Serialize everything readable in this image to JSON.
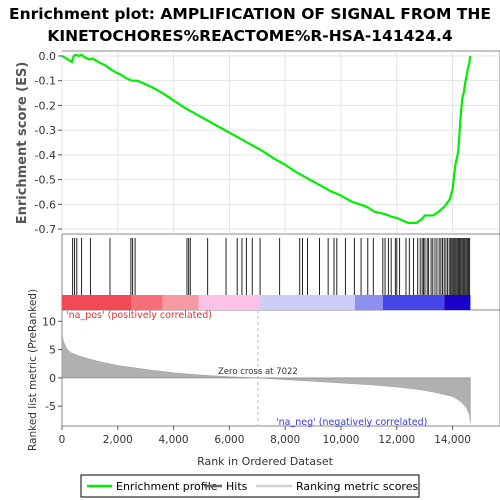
{
  "chart_data": {
    "type": "line",
    "title_lines": [
      "Enrichment plot: AMPLIFICATION OF SIGNAL FROM THE",
      "KINETOCHORES%REACTOME%R-HSA-141424.4"
    ],
    "top_panel": {
      "ylabel": "Enrichment score (ES)",
      "ylim": [
        -0.72,
        0.02
      ],
      "yticks": [
        0.0,
        -0.1,
        -0.2,
        -0.3,
        -0.4,
        -0.5,
        -0.6,
        -0.7
      ],
      "ytick_labels": [
        "0.0",
        "-0.1",
        "-0.2",
        "-0.3",
        "-0.4",
        "-0.5",
        "-0.6",
        "-0.7"
      ],
      "series_name": "Enrichment profile",
      "color": "#00ee00",
      "x": [
        0,
        150,
        300,
        360,
        420,
        500,
        600,
        700,
        800,
        900,
        1000,
        1100,
        1300,
        1500,
        1700,
        1900,
        2100,
        2300,
        2500,
        2700,
        2900,
        3200,
        3600,
        4000,
        4400,
        4800,
        5200,
        5600,
        6000,
        6400,
        6800,
        7200,
        7600,
        8000,
        8400,
        8800,
        9200,
        9600,
        10000,
        10400,
        10800,
        11000,
        11200,
        11600,
        11800,
        12000,
        12200,
        12400,
        12700,
        12900,
        13000,
        13300,
        13500,
        13700,
        13900,
        14000,
        14100,
        14200,
        14300,
        14350,
        14400,
        14450,
        14500,
        14550,
        14600,
        14620,
        14640
      ],
      "y": [
        0.0,
        -0.01,
        -0.02,
        -0.025,
        0.0,
        0.005,
        0.0,
        0.005,
        -0.005,
        -0.01,
        -0.015,
        -0.01,
        -0.025,
        -0.035,
        -0.05,
        -0.065,
        -0.075,
        -0.09,
        -0.1,
        -0.1,
        -0.11,
        -0.125,
        -0.15,
        -0.18,
        -0.21,
        -0.235,
        -0.26,
        -0.285,
        -0.31,
        -0.335,
        -0.36,
        -0.385,
        -0.415,
        -0.44,
        -0.47,
        -0.495,
        -0.52,
        -0.545,
        -0.565,
        -0.59,
        -0.605,
        -0.615,
        -0.63,
        -0.64,
        -0.65,
        -0.655,
        -0.665,
        -0.675,
        -0.675,
        -0.66,
        -0.645,
        -0.645,
        -0.63,
        -0.61,
        -0.58,
        -0.54,
        -0.44,
        -0.39,
        -0.23,
        -0.17,
        -0.15,
        -0.11,
        -0.08,
        -0.05,
        -0.03,
        -0.01,
        0.0
      ]
    },
    "hits_x": [
      380,
      450,
      530,
      700,
      1020,
      1720,
      2470,
      2530,
      2620,
      4480,
      4540,
      4600,
      5220,
      5880,
      6280,
      6450,
      6610,
      6820,
      7100,
      7800,
      8520,
      8620,
      8800,
      9230,
      9540,
      9750,
      9850,
      10160,
      10480,
      10720,
      10960,
      11160,
      11500,
      11580,
      11700,
      11800,
      11950,
      12000,
      12100,
      12330,
      12450,
      12600,
      12750,
      12840,
      12910,
      12960,
      13010,
      13090,
      13140,
      13230,
      13290,
      13370,
      13440,
      13520,
      13580,
      13640,
      13700,
      13760,
      13820,
      13880,
      13930,
      13970,
      14010,
      14050,
      14090,
      14130,
      14170,
      14210,
      14250,
      14290,
      14330,
      14370,
      14410,
      14450,
      14490,
      14530,
      14570,
      14610
    ],
    "bottom_panel": {
      "ylabel": "Ranked list metric (PreRanked)",
      "ylim": [
        -8.5,
        12
      ],
      "yticks": [
        10,
        5,
        0,
        -5
      ],
      "ytick_labels": [
        "10",
        "5",
        "0",
        "-5"
      ],
      "color": "#b0b0b0",
      "x": [
        0,
        50,
        150,
        300,
        600,
        1000,
        1500,
        2000,
        3000,
        4000,
        5000,
        6000,
        7022,
        8000,
        9000,
        10000,
        11000,
        12000,
        13000,
        13500,
        14000,
        14300,
        14500,
        14600,
        14640
      ],
      "y": [
        7.8,
        6.5,
        5.3,
        4.5,
        3.9,
        3.3,
        2.7,
        2.2,
        1.5,
        0.9,
        0.5,
        0.2,
        0.0,
        -0.3,
        -0.6,
        -0.9,
        -1.2,
        -1.6,
        -2.2,
        -2.7,
        -3.3,
        -4.2,
        -5.3,
        -6.4,
        -8.0
      ],
      "zero_cross": 7022,
      "zero_cross_label": "Zero cross at 7022",
      "pos_label": "'na_pos' (positively correlated)",
      "neg_label": "'na_neg' (negatively correlated)"
    },
    "xlabel": "Rank in Ordered Dataset",
    "xlim": [
      0,
      15700
    ],
    "xticks": [
      0,
      2000,
      4000,
      6000,
      8000,
      10000,
      12000,
      14000
    ],
    "xtick_labels": [
      "0",
      "2,000",
      "4,000",
      "6,000",
      "8,000",
      "10,000",
      "12,000",
      "14,000"
    ],
    "colorbar": {
      "xmax": 14640,
      "segments": [
        {
          "to": 2500,
          "color": "#f24a55"
        },
        {
          "to": 3600,
          "color": "#f66f78"
        },
        {
          "to": 4900,
          "color": "#f799a1"
        },
        {
          "to": 7100,
          "color": "#f9c2e6"
        },
        {
          "to": 10500,
          "color": "#cccdf6"
        },
        {
          "to": 11500,
          "color": "#8f8ff0"
        },
        {
          "to": 13700,
          "color": "#4545e8"
        },
        {
          "to": 14640,
          "color": "#1a00c8"
        }
      ]
    },
    "legend": {
      "placement": "bottom",
      "items": [
        {
          "label": "Enrichment profile",
          "color": "#00ee00",
          "kind": "line"
        },
        {
          "label": "Hits",
          "color": "#666666",
          "kind": "line"
        },
        {
          "label": "Ranking metric scores",
          "color": "#d0d0d0",
          "kind": "line"
        }
      ]
    }
  }
}
